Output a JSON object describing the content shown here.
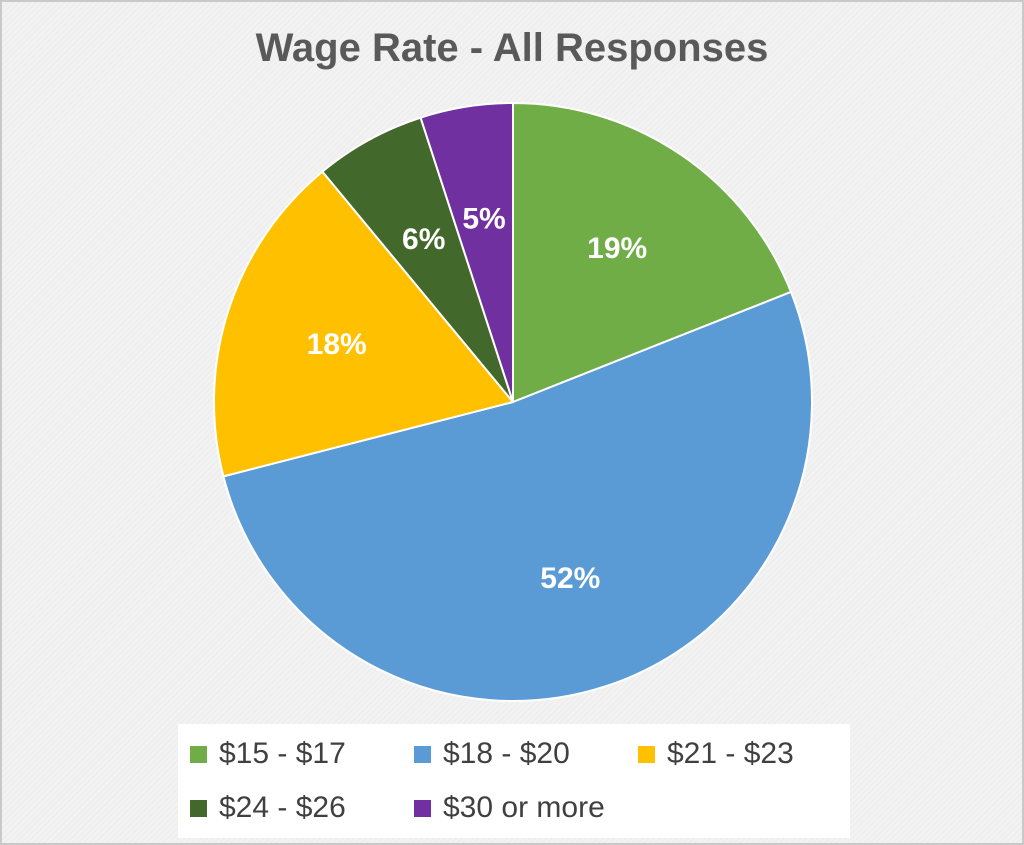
{
  "chart_data": {
    "type": "pie",
    "title": "Wage Rate - All Responses",
    "categories": [
      "$15 - $17",
      "$18 - $20",
      "$21 - $23",
      "$24 - $26",
      "$30 or more"
    ],
    "values": [
      19,
      52,
      18,
      6,
      5
    ],
    "data_labels": [
      "19%",
      "52%",
      "18%",
      "6%",
      "5%"
    ],
    "colors": [
      "#70AD47",
      "#5B9BD5",
      "#FFC000",
      "#43682B",
      "#7030A0"
    ],
    "start_angle": "12 o'clock",
    "direction": "clockwise",
    "legend_position": "bottom"
  }
}
